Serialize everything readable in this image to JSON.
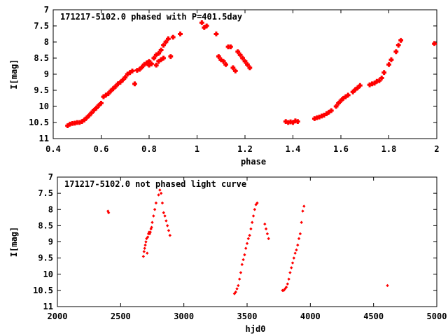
{
  "chart_data": [
    {
      "type": "scatter",
      "title": "171217-5102.0 phased with P=401.5day",
      "xlabel": "phase",
      "ylabel": "I[mag]",
      "xlim": [
        0.4,
        2.0
      ],
      "ylim": [
        11,
        7
      ],
      "y_inverted": true,
      "xticks": [
        "0.4",
        "0.6",
        "0.8",
        "1",
        "1.2",
        "1.4",
        "1.6",
        "1.8",
        "2"
      ],
      "yticks": [
        "7",
        "7.5",
        "8",
        "8.5",
        "9",
        "9.5",
        "10",
        "10.5",
        "11"
      ],
      "marker": "star",
      "color": "#ff0000",
      "series": [
        {
          "x": [
            0.46,
            0.47,
            0.48,
            0.49,
            0.5,
            0.51,
            0.52,
            0.53,
            0.54,
            0.55,
            0.56,
            0.57,
            0.58,
            0.59,
            0.6,
            0.61,
            0.62,
            0.63,
            0.64,
            0.65,
            0.66,
            0.67,
            0.68,
            0.69,
            0.7,
            0.71,
            0.72,
            0.73,
            0.74,
            0.75,
            0.76,
            0.77,
            0.78,
            0.79,
            0.8,
            0.8,
            0.81,
            0.82,
            0.83,
            0.83,
            0.84,
            0.84,
            0.85,
            0.85,
            0.86,
            0.86,
            0.87,
            0.88,
            0.89,
            0.9,
            0.93,
            1.02,
            1.03,
            1.04,
            1.08,
            1.09,
            1.1,
            1.11,
            1.12,
            1.13,
            1.14,
            1.15,
            1.16,
            1.17,
            1.18,
            1.19,
            1.2,
            1.21,
            1.22,
            1.37,
            1.38,
            1.39,
            1.4,
            1.41,
            1.42,
            1.49,
            1.5,
            1.51,
            1.52,
            1.53,
            1.54,
            1.55,
            1.56,
            1.58,
            1.59,
            1.6,
            1.61,
            1.62,
            1.63,
            1.65,
            1.66,
            1.67,
            1.68,
            1.72,
            1.73,
            1.74,
            1.75,
            1.76,
            1.77,
            1.78,
            1.8,
            1.81,
            1.83,
            1.84,
            1.85,
            1.99
          ],
          "y": [
            10.6,
            10.55,
            10.53,
            10.52,
            10.5,
            10.5,
            10.47,
            10.42,
            10.35,
            10.28,
            10.2,
            10.12,
            10.05,
            9.97,
            9.9,
            9.7,
            9.65,
            9.6,
            9.52,
            9.45,
            9.38,
            9.3,
            9.25,
            9.18,
            9.1,
            9.0,
            8.95,
            8.9,
            9.3,
            8.88,
            8.85,
            8.78,
            8.7,
            8.65,
            8.6,
            8.72,
            8.68,
            8.5,
            8.4,
            8.72,
            8.35,
            8.6,
            8.25,
            8.55,
            8.1,
            8.5,
            8.0,
            7.9,
            8.45,
            7.85,
            7.75,
            7.4,
            7.55,
            7.5,
            7.75,
            8.45,
            8.55,
            8.6,
            8.7,
            8.15,
            8.15,
            8.8,
            8.9,
            8.3,
            8.4,
            8.5,
            8.6,
            8.7,
            8.8,
            10.47,
            10.5,
            10.48,
            10.5,
            10.45,
            10.47,
            10.38,
            10.35,
            10.33,
            10.3,
            10.27,
            10.23,
            10.18,
            10.13,
            10.0,
            9.9,
            9.82,
            9.75,
            9.7,
            9.65,
            9.55,
            9.48,
            9.42,
            9.35,
            9.33,
            9.3,
            9.28,
            9.22,
            9.2,
            9.12,
            8.95,
            8.7,
            8.55,
            8.3,
            8.1,
            7.95,
            8.05
          ]
        }
      ]
    },
    {
      "type": "scatter",
      "title": "171217-5102.0 not phased light curve",
      "xlabel": "hjd0",
      "ylabel": "I[mag]",
      "xlim": [
        2000,
        5000
      ],
      "ylim": [
        11,
        7
      ],
      "y_inverted": true,
      "xticks": [
        "2000",
        "2500",
        "3000",
        "3500",
        "4000",
        "4500",
        "5000"
      ],
      "yticks": [
        "7",
        "7.5",
        "8",
        "8.5",
        "9",
        "9.5",
        "10",
        "10.5",
        "11"
      ],
      "marker": "diamond",
      "color": "#ff0000",
      "series": [
        {
          "x": [
            2400,
            2405,
            2680,
            2685,
            2690,
            2695,
            2700,
            2705,
            2710,
            2715,
            2720,
            2725,
            2730,
            2735,
            2740,
            2745,
            2750,
            2760,
            2770,
            2780,
            2800,
            2810,
            2820,
            2830,
            2840,
            2850,
            2860,
            2870,
            2880,
            2890,
            3400,
            3410,
            3420,
            3430,
            3440,
            3450,
            3460,
            3470,
            3480,
            3490,
            3500,
            3510,
            3520,
            3530,
            3540,
            3550,
            3560,
            3570,
            3580,
            3640,
            3650,
            3660,
            3670,
            3780,
            3790,
            3800,
            3810,
            3820,
            3830,
            3840,
            3850,
            3860,
            3870,
            3880,
            3890,
            3900,
            3910,
            3920,
            3930,
            3940,
            3950,
            4610
          ],
          "y": [
            8.05,
            8.1,
            9.45,
            9.3,
            9.2,
            9.1,
            9.0,
            8.9,
            9.35,
            8.85,
            8.75,
            8.7,
            8.75,
            8.7,
            8.6,
            8.55,
            8.4,
            8.2,
            8.0,
            7.8,
            7.55,
            7.4,
            7.5,
            7.8,
            8.1,
            8.2,
            8.35,
            8.5,
            8.65,
            8.8,
            10.6,
            10.55,
            10.45,
            10.35,
            10.15,
            9.95,
            9.7,
            9.55,
            9.4,
            9.2,
            9.05,
            8.9,
            8.8,
            8.6,
            8.4,
            8.2,
            8.0,
            7.85,
            7.8,
            8.45,
            8.6,
            8.75,
            8.9,
            10.5,
            10.5,
            10.45,
            10.4,
            10.3,
            10.15,
            9.95,
            9.8,
            9.65,
            9.5,
            9.35,
            9.25,
            9.1,
            8.9,
            8.75,
            8.4,
            8.05,
            7.9,
            10.35
          ]
        }
      ]
    }
  ]
}
